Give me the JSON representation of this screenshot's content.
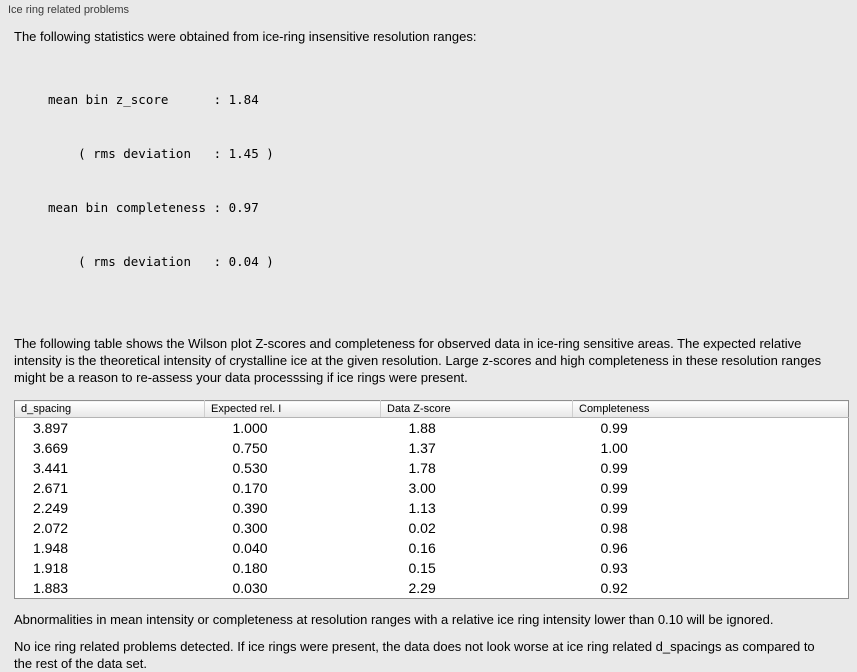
{
  "panel": {
    "title": "Ice ring related problems"
  },
  "stats": {
    "intro": "The following statistics were obtained from ice-ring insensitive resolution ranges:",
    "lines": [
      "mean bin z_score      : 1.84",
      "    ( rms deviation   : 1.45 )",
      "mean bin completeness : 0.97",
      "    ( rms deviation   : 0.04 )"
    ]
  },
  "description": "The following table shows the Wilson plot Z-scores and completeness for observed data in ice-ring sensitive areas. The expected relative intensity is the theoretical intensity of crystalline ice at the given resolution. Large z-scores and high completeness in these resolution ranges might be a reason to re-assess your data processsing if ice rings were present.",
  "table": {
    "headers": [
      "d_spacing",
      "Expected rel. I",
      "Data Z-score",
      "Completeness"
    ],
    "rows": [
      [
        "3.897",
        "1.000",
        "1.88",
        "0.99"
      ],
      [
        "3.669",
        "0.750",
        "1.37",
        "1.00"
      ],
      [
        "3.441",
        "0.530",
        "1.78",
        "0.99"
      ],
      [
        "2.671",
        "0.170",
        "3.00",
        "0.99"
      ],
      [
        "2.249",
        "0.390",
        "1.13",
        "0.99"
      ],
      [
        "2.072",
        "0.300",
        "0.02",
        "0.98"
      ],
      [
        "1.948",
        "0.040",
        "0.16",
        "0.96"
      ],
      [
        "1.918",
        "0.180",
        "0.15",
        "0.93"
      ],
      [
        "1.883",
        "0.030",
        "2.29",
        "0.92"
      ]
    ]
  },
  "notes": {
    "ignore_note": "Abnormalities in mean intensity or completeness at resolution ranges with a relative ice ring intensity lower than 0.10 will be ignored.",
    "conclusion": "No ice ring related problems detected. If ice rings were present, the data does not look worse at ice ring related d_spacings as compared to the rest of the data set."
  },
  "colors": {
    "background": "#e9e9e9",
    "table_background": "#ffffff",
    "table_border": "#8e8e8e",
    "header_background": "#f0f0f0",
    "text": "#000000",
    "panel_title": "#3a3a3a"
  }
}
